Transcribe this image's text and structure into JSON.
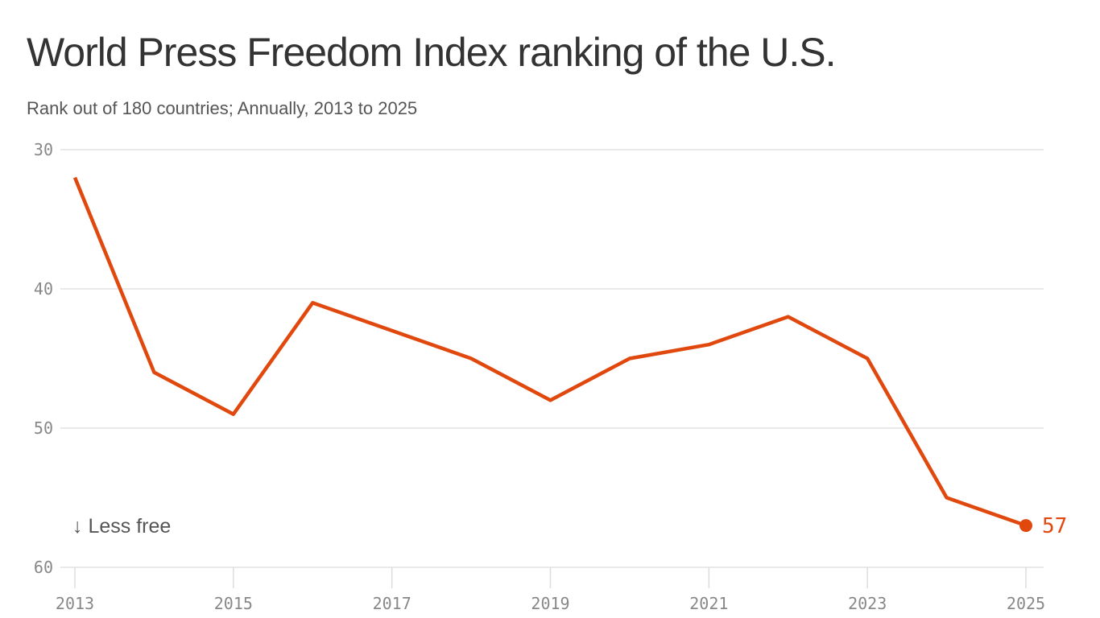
{
  "chart_data": {
    "type": "line",
    "title": "World Press Freedom Index ranking of the U.S.",
    "subtitle": "Rank out of 180 countries; Annually, 2013 to 2025",
    "x": [
      2013,
      2014,
      2015,
      2016,
      2017,
      2018,
      2019,
      2020,
      2021,
      2022,
      2023,
      2024,
      2025
    ],
    "series": [
      {
        "name": "U.S. rank",
        "values": [
          32,
          46,
          49,
          41,
          43,
          45,
          48,
          45,
          44,
          42,
          45,
          55,
          57
        ]
      }
    ],
    "ylim": [
      30,
      60
    ],
    "y_inverted": true,
    "y_ticks": [
      "30",
      "40",
      "50",
      "60"
    ],
    "x_ticks": [
      "2013",
      "2015",
      "2017",
      "2019",
      "2021",
      "2023",
      "2025"
    ],
    "annotation": "↓ Less free",
    "end_label": "57",
    "line_color": "#e0480e",
    "grid": true
  }
}
